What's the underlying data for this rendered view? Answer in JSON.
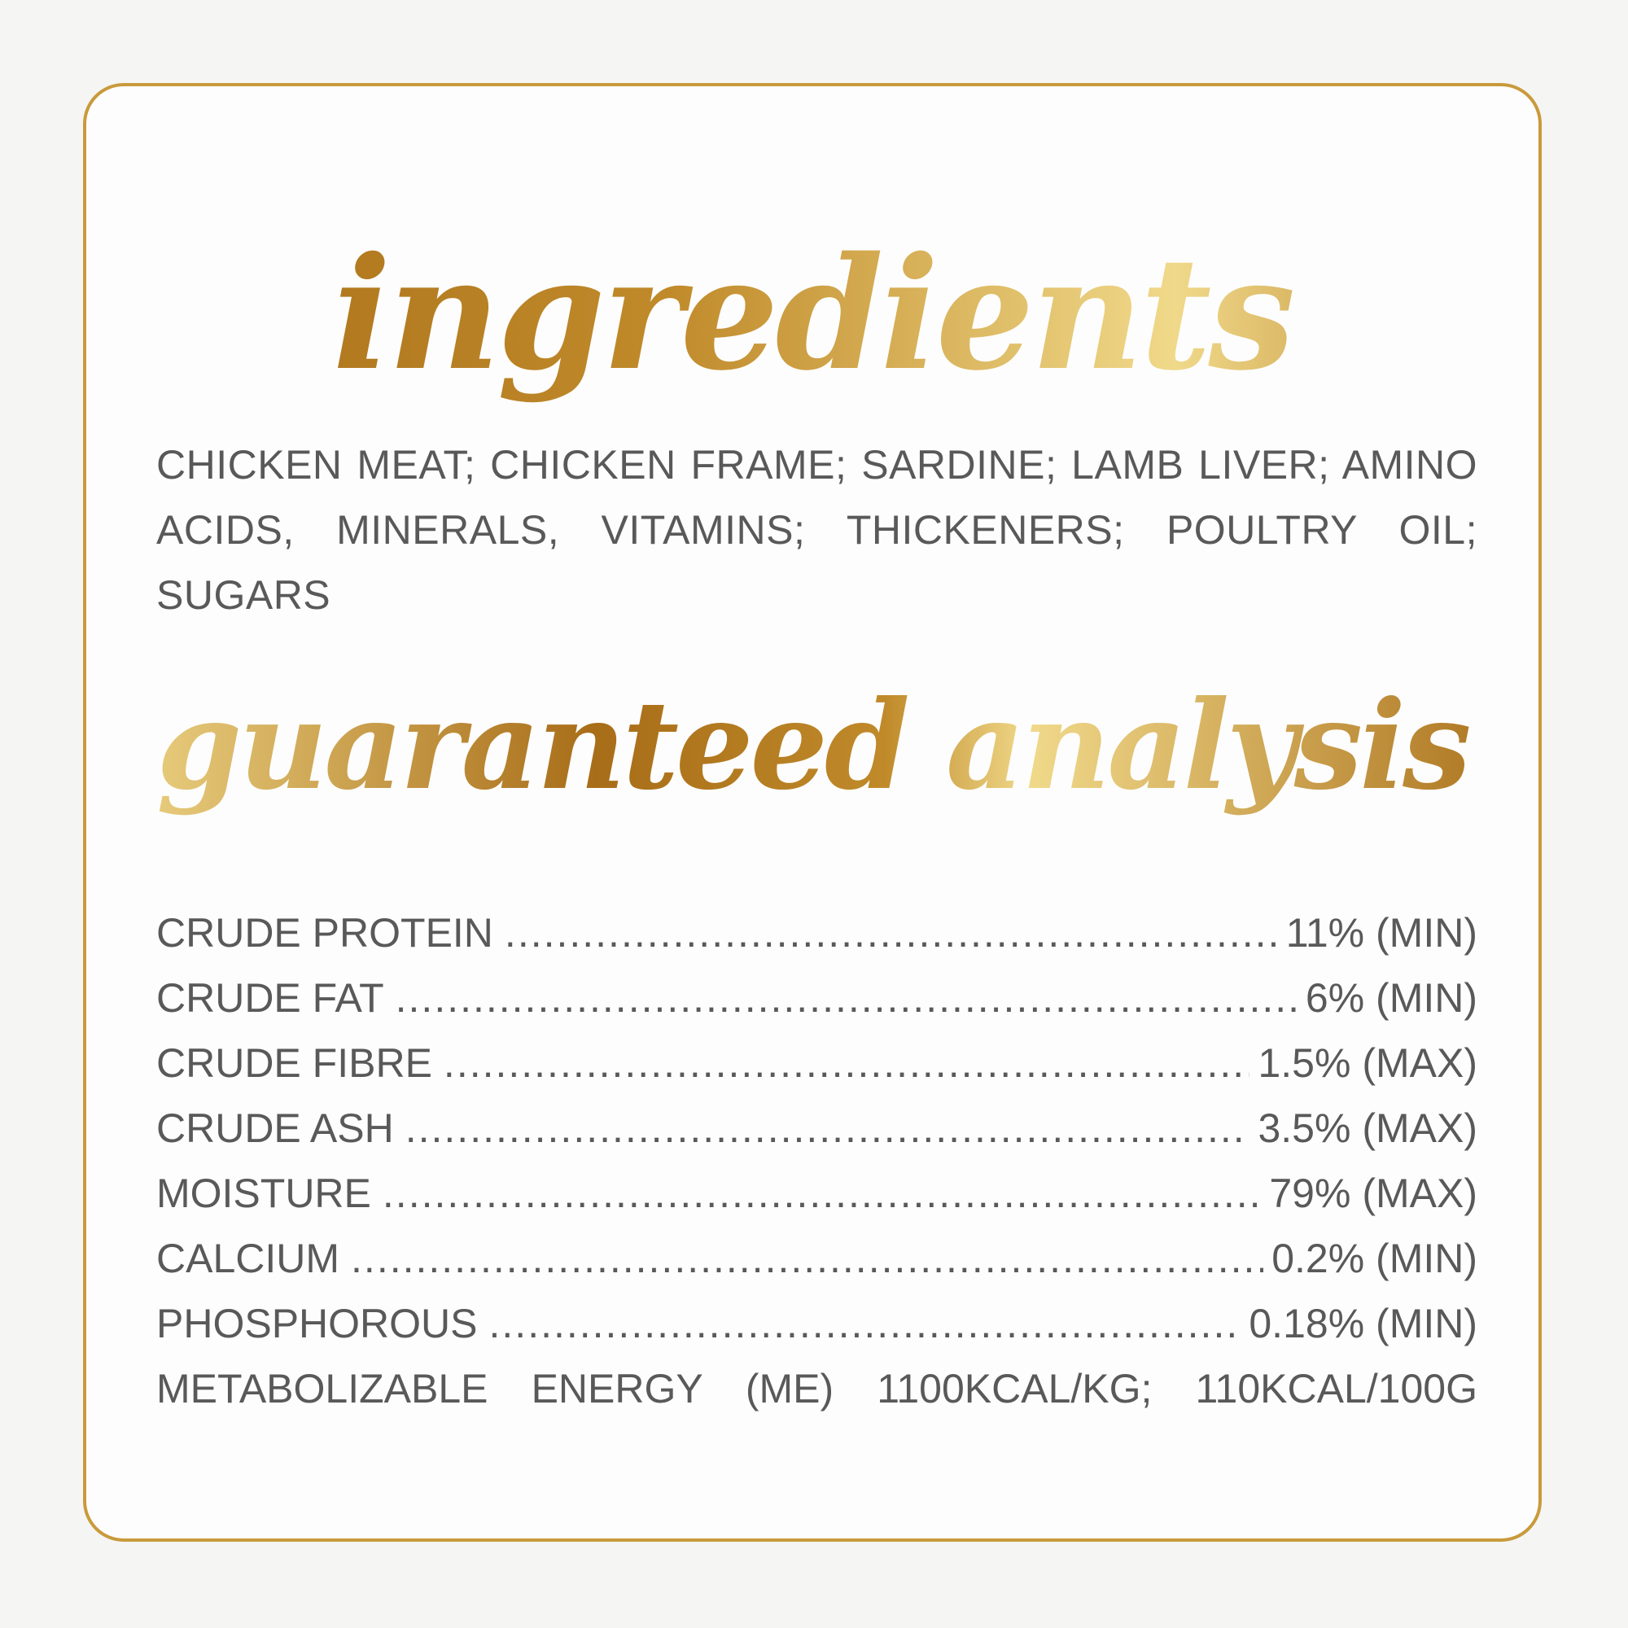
{
  "ingredients": {
    "title": "ingredients",
    "text": "CHICKEN MEAT; CHICKEN FRAME; SARDINE; LAMB LIVER; AMINO ACIDS, MINERALS, VITAMINS; THICKENERS; POULTRY OIL; SUGARS"
  },
  "analysis": {
    "title": "guaranteed analysis",
    "rows": [
      {
        "label": "CRUDE PROTEIN",
        "value": "11% (MIN)"
      },
      {
        "label": "CRUDE FAT",
        "value": "6% (MIN)"
      },
      {
        "label": "CRUDE FIBRE",
        "value": "1.5% (MAX)"
      },
      {
        "label": "CRUDE ASH",
        "value": "3.5% (MAX)"
      },
      {
        "label": "MOISTURE",
        "value": "79% (MAX)"
      },
      {
        "label": "CALCIUM",
        "value": "0.2% (MIN)"
      },
      {
        "label": "PHOSPHOROUS",
        "value": "0.18% (MIN)"
      }
    ],
    "energy": "METABOLIZABLE ENERGY (ME) 1100KCAL/KG; 110KCAL/100G"
  },
  "colors": {
    "gold": "#c99a3c",
    "text": "#595959"
  }
}
